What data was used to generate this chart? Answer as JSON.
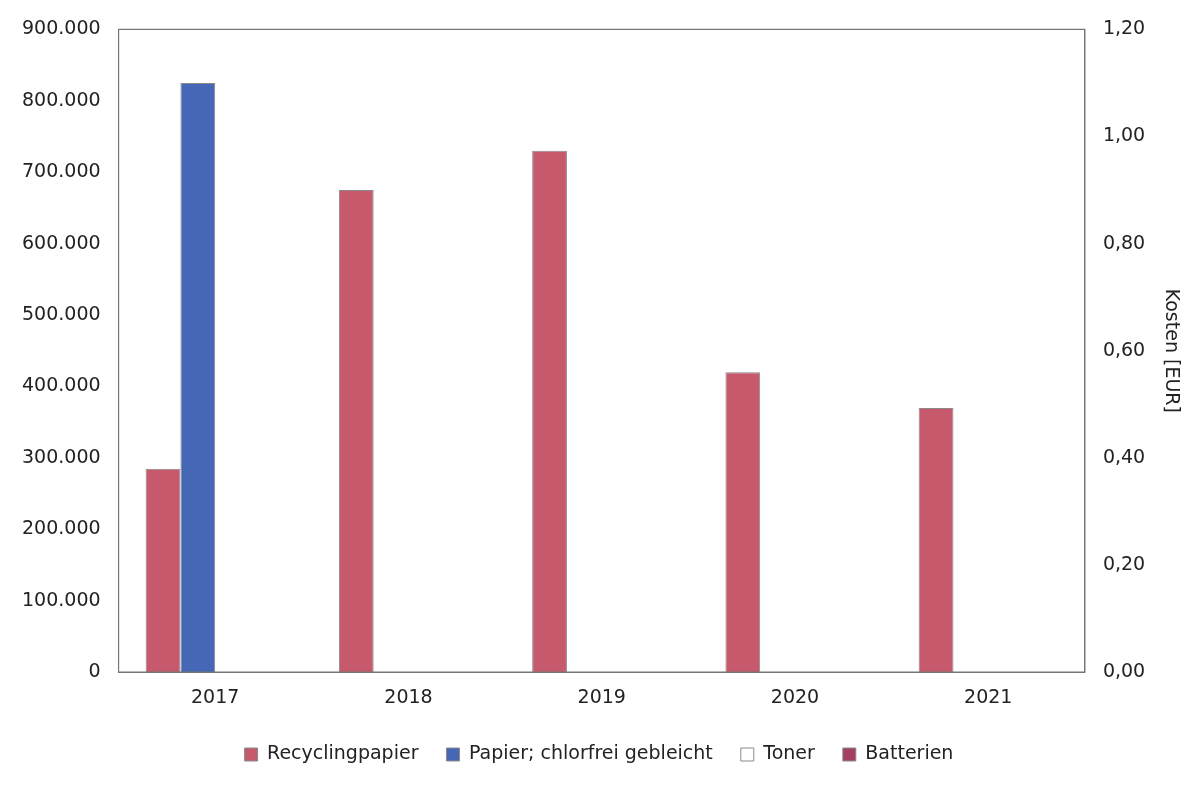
{
  "chart_data": {
    "type": "bar",
    "categories": [
      "2017",
      "2018",
      "2019",
      "2020",
      "2021"
    ],
    "series": [
      {
        "name": "Recyclingpapier",
        "color": "#c65a6c",
        "values": [
          285000,
          675000,
          730000,
          420000,
          370000
        ]
      },
      {
        "name": "Papier; chlorfrei gebleicht",
        "color": "#4567b5",
        "values": [
          825000,
          null,
          null,
          null,
          null
        ]
      },
      {
        "name": "Toner",
        "color": "#ffffff",
        "values": [
          null,
          null,
          null,
          null,
          null
        ]
      },
      {
        "name": "Batterien",
        "color": "#a3405f",
        "values": [
          null,
          null,
          null,
          null,
          null
        ]
      }
    ],
    "ylim": [
      0,
      900000
    ],
    "yticks": [
      {
        "value": 0,
        "label": "0"
      },
      {
        "value": 100000,
        "label": "100.000"
      },
      {
        "value": 200000,
        "label": "200.000"
      },
      {
        "value": 300000,
        "label": "300.000"
      },
      {
        "value": 400000,
        "label": "400.000"
      },
      {
        "value": 500000,
        "label": "500.000"
      },
      {
        "value": 600000,
        "label": "600.000"
      },
      {
        "value": 700000,
        "label": "700.000"
      },
      {
        "value": 800000,
        "label": "800.000"
      },
      {
        "value": 900000,
        "label": "900.000"
      }
    ],
    "y2lim": [
      0,
      1.2
    ],
    "y2ticks": [
      {
        "value": 0,
        "label": "0,00"
      },
      {
        "value": 0.2,
        "label": "0,20"
      },
      {
        "value": 0.4,
        "label": "0,40"
      },
      {
        "value": 0.6,
        "label": "0,60"
      },
      {
        "value": 0.8,
        "label": "0,80"
      },
      {
        "value": 1.0,
        "label": "1,00"
      },
      {
        "value": 1.2,
        "label": "1,20"
      }
    ],
    "y2label": "Kosten [EUR]",
    "legend": "bottom",
    "grid": false
  }
}
